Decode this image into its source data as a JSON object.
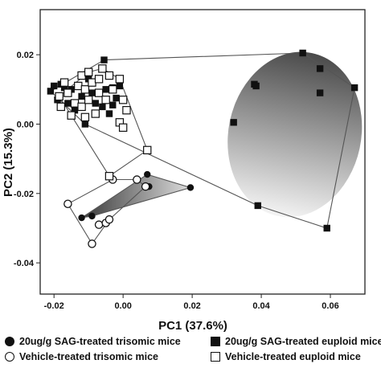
{
  "chart_data": {
    "type": "scatter",
    "xlabel": "PC1 (37.6%)",
    "ylabel": "PC2 (15.3%)",
    "xlim": [
      -0.024,
      0.07
    ],
    "ylim": [
      -0.049,
      0.033
    ],
    "xticks": [
      -0.02,
      0.0,
      0.02,
      0.04,
      0.06
    ],
    "xtick_labels": [
      "-0.02",
      "0.00",
      "0.02",
      "0.04",
      "0.06"
    ],
    "yticks": [
      -0.04,
      -0.02,
      0.0,
      0.02
    ],
    "ytick_labels": [
      "-0.04",
      "-0.02",
      "0.00",
      "0.02"
    ],
    "grid": false,
    "legend_position": "bottom",
    "series": [
      {
        "name": "20ug/g SAG-treated trisomic mice",
        "marker": "filled-circle",
        "color": "#111111",
        "points": [
          [
            -0.012,
            -0.027
          ],
          [
            -0.009,
            -0.0265
          ],
          [
            0.007,
            -0.0145
          ],
          [
            0.0075,
            -0.018
          ],
          [
            0.0195,
            -0.0183
          ]
        ],
        "hull": [
          [
            -0.012,
            -0.027
          ],
          [
            0.007,
            -0.0145
          ],
          [
            0.0195,
            -0.0183
          ],
          [
            -0.009,
            -0.0265
          ]
        ],
        "hull_fill": "gradient"
      },
      {
        "name": "Vehicle-treated trisomic mice",
        "marker": "open-circle",
        "color": "#111111",
        "points": [
          [
            -0.016,
            -0.023
          ],
          [
            -0.009,
            -0.0345
          ],
          [
            -0.007,
            -0.029
          ],
          [
            -0.005,
            -0.0285
          ],
          [
            -0.004,
            -0.0275
          ],
          [
            -0.003,
            -0.016
          ],
          [
            0.004,
            -0.016
          ],
          [
            0.0065,
            -0.018
          ]
        ],
        "hull": [
          [
            -0.016,
            -0.023
          ],
          [
            -0.003,
            -0.016
          ],
          [
            0.004,
            -0.016
          ],
          [
            0.0065,
            -0.018
          ],
          [
            -0.004,
            -0.0275
          ],
          [
            -0.009,
            -0.0345
          ]
        ],
        "hull_fill": "none"
      },
      {
        "name": "20ug/g SAG-treated euploid mice",
        "marker": "filled-square",
        "color": "#111111",
        "points": [
          [
            0.032,
            0.0005
          ],
          [
            0.038,
            0.0115
          ],
          [
            0.0385,
            0.011
          ],
          [
            0.039,
            -0.0235
          ],
          [
            0.052,
            0.0205
          ],
          [
            0.057,
            0.016
          ],
          [
            0.057,
            0.009
          ],
          [
            0.059,
            -0.03
          ],
          [
            0.067,
            0.0105
          ],
          [
            -0.021,
            0.0095
          ],
          [
            -0.02,
            0.011
          ],
          [
            -0.019,
            0.007
          ],
          [
            -0.018,
            0.0115
          ],
          [
            -0.017,
            0.0105
          ],
          [
            -0.016,
            0.006
          ],
          [
            -0.015,
            0.01
          ],
          [
            -0.014,
            0.004
          ],
          [
            -0.012,
            0.008
          ],
          [
            -0.011,
            0.0
          ],
          [
            -0.01,
            0.013
          ],
          [
            -0.009,
            0.009
          ],
          [
            -0.008,
            0.006
          ],
          [
            -0.006,
            0.005
          ],
          [
            -0.005,
            0.01
          ],
          [
            -0.004,
            0.003
          ],
          [
            -0.003,
            0.0105
          ],
          [
            -0.002,
            0.0075
          ],
          [
            -0.001,
            0.011
          ],
          [
            -0.003,
            0.0055
          ],
          [
            -0.0055,
            0.0185
          ]
        ],
        "hull": [
          [
            -0.021,
            0.0095
          ],
          [
            -0.0055,
            0.0185
          ],
          [
            0.052,
            0.0205
          ],
          [
            0.067,
            0.0105
          ],
          [
            0.059,
            -0.03
          ],
          [
            0.039,
            -0.0235
          ],
          [
            -0.011,
            0.0
          ]
        ],
        "ellipse": {
          "cx": 0.0497,
          "cy": -0.003,
          "rx": 0.0192,
          "ry": 0.024,
          "rotation_deg": 12
        },
        "ellipse_fill": "gradient"
      },
      {
        "name": "Vehicle-treated euploid mice",
        "marker": "open-square",
        "color": "#111111",
        "points": [
          [
            -0.0185,
            0.008
          ],
          [
            -0.018,
            0.005
          ],
          [
            -0.017,
            0.012
          ],
          [
            -0.016,
            0.009
          ],
          [
            -0.015,
            0.0025
          ],
          [
            -0.014,
            0.006
          ],
          [
            -0.013,
            0.011
          ],
          [
            -0.012,
            0.014
          ],
          [
            -0.012,
            0.005
          ],
          [
            -0.011,
            0.01
          ],
          [
            -0.011,
            0.002
          ],
          [
            -0.01,
            0.015
          ],
          [
            -0.01,
            0.007
          ],
          [
            -0.009,
            0.012
          ],
          [
            -0.008,
            0.003
          ],
          [
            -0.007,
            0.013
          ],
          [
            -0.007,
            0.009
          ],
          [
            -0.006,
            0.016
          ],
          [
            -0.005,
            0.007
          ],
          [
            -0.004,
            0.014
          ],
          [
            -0.003,
            0.01
          ],
          [
            -0.001,
            0.013
          ],
          [
            0.0,
            0.007
          ],
          [
            0.001,
            0.004
          ],
          [
            -0.001,
            0.0005
          ],
          [
            0.0,
            -0.001
          ],
          [
            -0.004,
            -0.015
          ],
          [
            0.007,
            -0.0075
          ]
        ],
        "hull": [
          [
            -0.0185,
            0.008
          ],
          [
            -0.01,
            0.015
          ],
          [
            -0.006,
            0.016
          ],
          [
            -0.001,
            0.013
          ],
          [
            0.007,
            -0.0075
          ],
          [
            -0.004,
            -0.015
          ],
          [
            -0.015,
            0.0025
          ]
        ]
      }
    ]
  }
}
